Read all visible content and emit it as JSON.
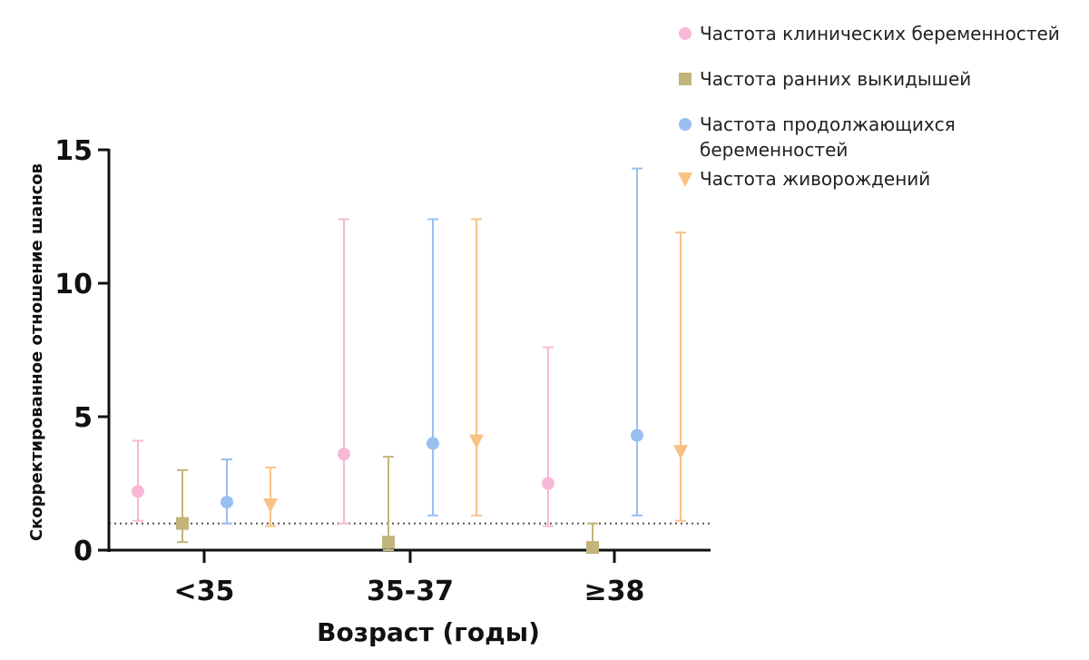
{
  "chart_data": {
    "type": "scatter",
    "title": "",
    "xlabel": "Возраст (годы)",
    "ylabel": "Скорректированное отношение шансов",
    "ylim": [
      0,
      15
    ],
    "yticks": [
      "0",
      "5",
      "10",
      "15"
    ],
    "categories": [
      "<35",
      "35-37",
      "≥38"
    ],
    "reference_line": 1,
    "legend_position": "top-right",
    "series": [
      {
        "name": "Частота клинических беременностей",
        "legend_lines": [
          "Частота клинических беременностей"
        ],
        "marker": "circle",
        "color": "#f7b8d8",
        "values": [
          2.2,
          3.6,
          2.5
        ],
        "ci_low": [
          1.1,
          1.0,
          0.9
        ],
        "ci_high": [
          4.1,
          12.4,
          7.6
        ]
      },
      {
        "name": "Частота ранних выкидышей",
        "legend_lines": [
          "Частота ранних выкидышей"
        ],
        "marker": "square",
        "color": "#c2b57c",
        "values": [
          1.0,
          0.3,
          0.1
        ],
        "ci_low": [
          0.3,
          0.0,
          0.0
        ],
        "ci_high": [
          3.0,
          3.5,
          1.0
        ]
      },
      {
        "name": "Частота продолжающихся беременностей",
        "legend_lines": [
          "Частота продолжающихся",
          "беременностей"
        ],
        "marker": "circle",
        "color": "#99bff0",
        "values": [
          1.8,
          4.0,
          4.3
        ],
        "ci_low": [
          1.0,
          1.3,
          1.3
        ],
        "ci_high": [
          3.4,
          12.4,
          14.3
        ]
      },
      {
        "name": "Частота живорождений",
        "legend_lines": [
          "Частота живорождений"
        ],
        "marker": "triangle-down",
        "color": "#f9c184",
        "values": [
          1.7,
          4.1,
          3.7
        ],
        "ci_low": [
          0.9,
          1.3,
          1.1
        ],
        "ci_high": [
          3.1,
          12.4,
          11.9
        ]
      }
    ]
  }
}
